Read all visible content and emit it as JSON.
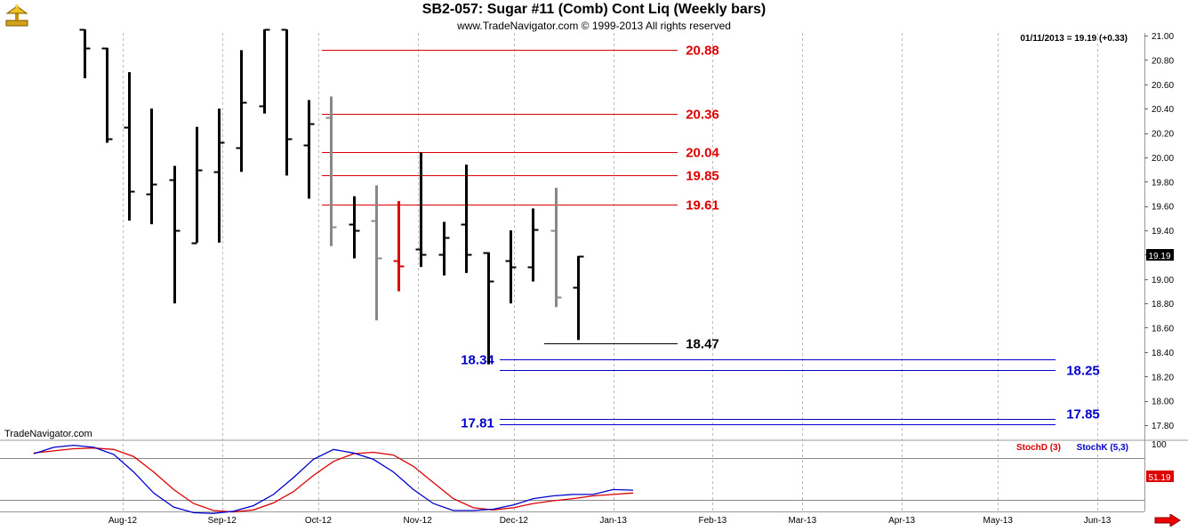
{
  "header": {
    "title": "SB2-057:  Sugar #11 (Comb) Cont Liq  (Weekly bars)",
    "copyright": "www.TradeNavigator.com © 1999-2013 All rights reserved"
  },
  "price_panel": {
    "readout": "01/11/2013 = 19.19 (+0.33)",
    "watermark": "TradeNavigator.com",
    "last_price": "19.19"
  },
  "stoch_panel": {
    "legend_d": "StochD (3)",
    "legend_k": "StochK (5,3)",
    "last_value": "51.19"
  },
  "colors": {
    "up_bar": "#000000",
    "down_bar": "#888888",
    "highlight_bar": "#dd0000",
    "resistance": "#dd0000",
    "support_blue": "#0000cc",
    "stoch_d": "#dd0000",
    "stoch_k": "#0000cc"
  },
  "chart_data": [
    {
      "type": "ohlc",
      "title": "SB2-057:  Sugar #11 (Comb) Cont Liq  (Weekly bars)",
      "x_tick_labels": [
        "Aug-12",
        "Sep-12",
        "Oct-12",
        "Nov-12",
        "Dec-12",
        "Jan-13",
        "Feb-13",
        "Mar-13",
        "Apr-13",
        "May-13",
        "Jun-13"
      ],
      "y_range": [
        17.7,
        21.05
      ],
      "y_tick_labels": [
        "21.00",
        "20.80",
        "20.60",
        "20.40",
        "20.20",
        "20.00",
        "19.80",
        "19.60",
        "19.40",
        "19.20",
        "19.00",
        "18.80",
        "18.60",
        "18.40",
        "18.20",
        "18.00",
        "17.80"
      ],
      "series": [
        {
          "bars": [
            {
              "date": "2012-07-20",
              "o": 21.05,
              "h": 21.05,
              "l": 20.65,
              "c": 20.9,
              "style": "up"
            },
            {
              "date": "2012-07-27",
              "o": 20.9,
              "h": 20.9,
              "l": 20.12,
              "c": 20.15,
              "style": "up"
            },
            {
              "date": "2012-08-03",
              "o": 20.25,
              "h": 20.7,
              "l": 19.48,
              "c": 19.72,
              "style": "up"
            },
            {
              "date": "2012-08-10",
              "o": 19.7,
              "h": 20.4,
              "l": 19.45,
              "c": 19.78,
              "style": "up"
            },
            {
              "date": "2012-08-17",
              "o": 19.82,
              "h": 19.93,
              "l": 18.8,
              "c": 19.4,
              "style": "up"
            },
            {
              "date": "2012-08-24",
              "o": 19.3,
              "h": 20.25,
              "l": 19.3,
              "c": 19.9,
              "style": "up"
            },
            {
              "date": "2012-08-31",
              "o": 19.88,
              "h": 20.4,
              "l": 19.3,
              "c": 20.12,
              "style": "up"
            },
            {
              "date": "2012-09-07",
              "o": 20.08,
              "h": 20.88,
              "l": 19.88,
              "c": 20.45,
              "style": "up"
            },
            {
              "date": "2012-09-14",
              "o": 20.42,
              "h": 21.05,
              "l": 20.36,
              "c": 21.05,
              "style": "up"
            },
            {
              "date": "2012-09-21",
              "o": 21.05,
              "h": 21.05,
              "l": 19.85,
              "c": 20.15,
              "style": "up"
            },
            {
              "date": "2012-09-28",
              "o": 20.1,
              "h": 20.47,
              "l": 19.66,
              "c": 20.28,
              "style": "up"
            },
            {
              "date": "2012-10-05",
              "o": 20.33,
              "h": 20.5,
              "l": 19.27,
              "c": 19.43,
              "style": "down"
            },
            {
              "date": "2012-10-12",
              "o": 19.45,
              "h": 19.68,
              "l": 19.17,
              "c": 19.4,
              "style": "up"
            },
            {
              "date": "2012-10-19",
              "o": 19.48,
              "h": 19.77,
              "l": 18.66,
              "c": 19.17,
              "style": "down"
            },
            {
              "date": "2012-10-26",
              "o": 19.15,
              "h": 19.64,
              "l": 18.9,
              "c": 19.11,
              "style": "highlight"
            },
            {
              "date": "2012-11-02",
              "o": 19.25,
              "h": 20.04,
              "l": 19.1,
              "c": 19.2,
              "style": "up"
            },
            {
              "date": "2012-11-09",
              "o": 19.2,
              "h": 19.47,
              "l": 19.03,
              "c": 19.34,
              "style": "up"
            },
            {
              "date": "2012-11-16",
              "o": 19.45,
              "h": 19.94,
              "l": 19.05,
              "c": 19.2,
              "style": "up"
            },
            {
              "date": "2012-11-23",
              "o": 19.22,
              "h": 19.22,
              "l": 18.3,
              "c": 18.98,
              "style": "up"
            },
            {
              "date": "2012-11-30",
              "o": 19.15,
              "h": 19.4,
              "l": 18.8,
              "c": 19.1,
              "style": "up"
            },
            {
              "date": "2012-12-07",
              "o": 19.1,
              "h": 19.58,
              "l": 18.98,
              "c": 19.41,
              "style": "up"
            },
            {
              "date": "2012-12-14",
              "o": 19.4,
              "h": 19.75,
              "l": 18.77,
              "c": 18.85,
              "style": "down"
            },
            {
              "date": "2012-12-21",
              "o": 18.93,
              "h": 19.19,
              "l": 18.5,
              "c": 19.19,
              "style": "up"
            }
          ]
        }
      ],
      "annotations": [
        {
          "label": "20.88",
          "value": 20.88,
          "color": "red"
        },
        {
          "label": "20.36",
          "value": 20.36,
          "color": "red"
        },
        {
          "label": "20.04",
          "value": 20.04,
          "color": "red"
        },
        {
          "label": "19.85",
          "value": 19.85,
          "color": "red"
        },
        {
          "label": "19.61",
          "value": 19.61,
          "color": "red"
        },
        {
          "label": "18.47",
          "value": 18.47,
          "color": "black"
        },
        {
          "label": "18.34",
          "value": 18.34,
          "color": "blue"
        },
        {
          "label": "18.25",
          "value": 18.25,
          "color": "blue"
        },
        {
          "label": "17.85",
          "value": 17.85,
          "color": "blue"
        },
        {
          "label": "17.81",
          "value": 17.81,
          "color": "blue"
        }
      ]
    },
    {
      "type": "line",
      "y_range": [
        0,
        100
      ],
      "y_tick_labels": [
        "100"
      ],
      "reference_lines": [
        80,
        20
      ],
      "series": [
        {
          "name": "StochD (3)",
          "values": [
            87,
            90,
            93,
            94,
            92,
            82,
            60,
            35,
            15,
            5,
            3,
            6,
            16,
            32,
            55,
            75,
            86,
            88,
            84,
            68,
            45,
            22,
            9,
            6,
            9,
            15,
            19,
            22,
            26,
            28,
            30
          ]
        },
        {
          "name": "StochK (5,3)",
          "values": [
            86,
            95,
            98,
            95,
            85,
            60,
            30,
            10,
            2,
            1,
            4,
            12,
            28,
            52,
            78,
            92,
            87,
            78,
            60,
            35,
            15,
            5,
            5,
            7,
            13,
            22,
            26,
            28,
            28,
            35,
            34
          ]
        }
      ]
    }
  ]
}
